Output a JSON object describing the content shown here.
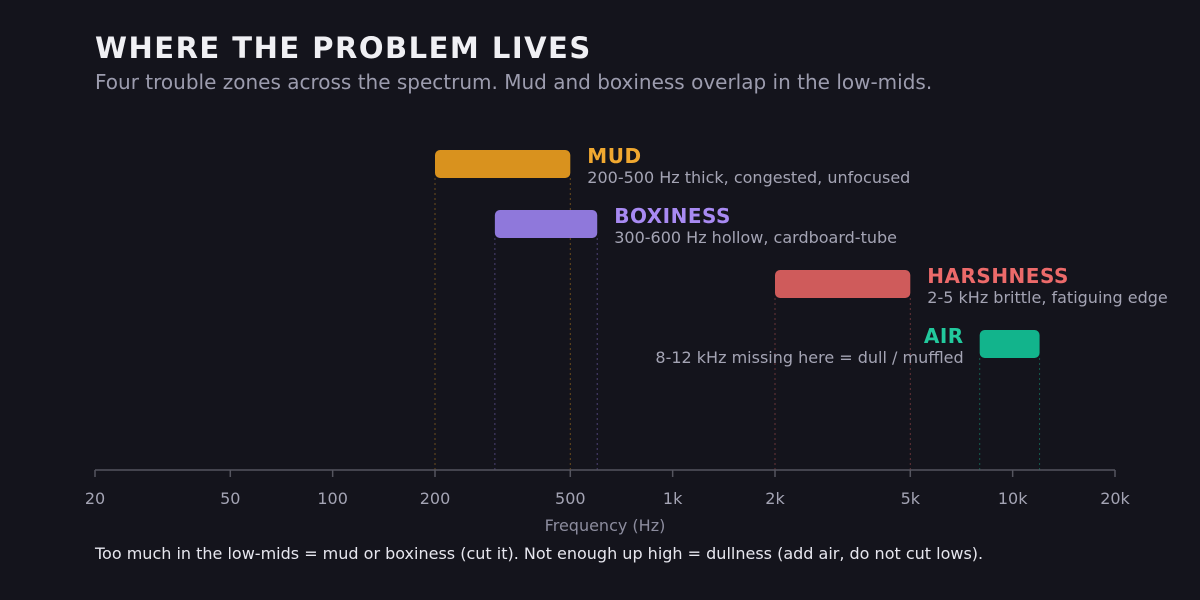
{
  "chart_data": {
    "type": "range-bar",
    "title": "WHERE THE PROBLEM LIVES",
    "subtitle": "Four trouble zones across the spectrum. Mud and boxiness overlap in the low-mids.",
    "xlabel": "Frequency (Hz)",
    "x_scale": "log",
    "xlim": [
      20,
      20000
    ],
    "x_ticks": [
      {
        "value": 20,
        "label": "20"
      },
      {
        "value": 50,
        "label": "50"
      },
      {
        "value": 100,
        "label": "100"
      },
      {
        "value": 200,
        "label": "200"
      },
      {
        "value": 500,
        "label": "500"
      },
      {
        "value": 1000,
        "label": "1k"
      },
      {
        "value": 2000,
        "label": "2k"
      },
      {
        "value": 5000,
        "label": "5k"
      },
      {
        "value": 10000,
        "label": "10k"
      },
      {
        "value": 20000,
        "label": "20k"
      }
    ],
    "zones": [
      {
        "name": "MUD",
        "low": 200,
        "high": 500,
        "description": "200-500 Hz thick, congested, unfocused",
        "color": "#d9921e",
        "label_side": "right"
      },
      {
        "name": "BOXINESS",
        "low": 300,
        "high": 600,
        "description": "300-600 Hz hollow, cardboard-tube",
        "color": "#8f78db",
        "label_side": "right"
      },
      {
        "name": "HARSHNESS",
        "low": 2000,
        "high": 5000,
        "description": "2-5 kHz brittle, fatiguing edge",
        "color": "#cf5b5b",
        "label_side": "right"
      },
      {
        "name": "AIR",
        "low": 8000,
        "high": 12000,
        "description": "8-12 kHz missing here = dull / muffled",
        "color": "#12b48c",
        "label_side": "left"
      }
    ],
    "name_colors": [
      "#f0a830",
      "#a88af2",
      "#ec6a6a",
      "#22c99d"
    ],
    "grid": false,
    "footnote": "Too much in the low-mids = mud or boxiness (cut it). Not enough up high = dullness (add air, do not cut lows)."
  }
}
